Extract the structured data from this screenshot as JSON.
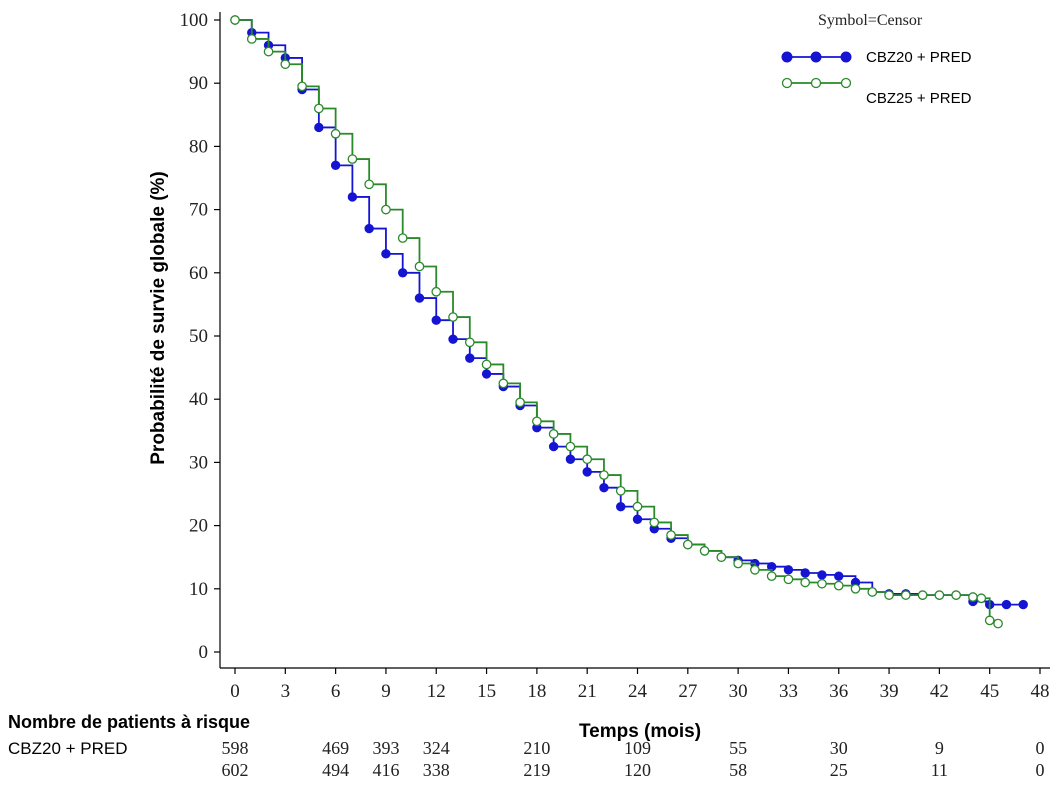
{
  "chart_data": {
    "type": "line",
    "xlabel": "Temps (mois)",
    "ylabel": "Probabilité de survie globale (%)",
    "xlim": [
      0,
      48
    ],
    "ylim": [
      0,
      100
    ],
    "x_ticks": [
      "0",
      "3",
      "6",
      "9",
      "12",
      "15",
      "18",
      "21",
      "24",
      "27",
      "30",
      "33",
      "36",
      "39",
      "42",
      "45",
      "48"
    ],
    "y_ticks": [
      "0",
      "10",
      "20",
      "30",
      "40",
      "50",
      "60",
      "70",
      "80",
      "90",
      "100"
    ],
    "legend": {
      "title": "Symbol=Censor",
      "placement": "top-right"
    },
    "series": [
      {
        "name": "CBZ20 + PRED",
        "color": "#1414d2",
        "marker": "filled-circle",
        "points": [
          [
            0,
            100
          ],
          [
            1,
            98
          ],
          [
            2,
            96
          ],
          [
            3,
            94
          ],
          [
            4,
            89
          ],
          [
            5,
            83
          ],
          [
            6,
            77
          ],
          [
            7,
            72
          ],
          [
            8,
            67
          ],
          [
            9,
            63
          ],
          [
            10,
            60
          ],
          [
            11,
            56
          ],
          [
            12,
            52.5
          ],
          [
            13,
            49.5
          ],
          [
            14,
            46.5
          ],
          [
            15,
            44
          ],
          [
            16,
            42
          ],
          [
            17,
            39
          ],
          [
            18,
            35.5
          ],
          [
            19,
            32.5
          ],
          [
            20,
            30.5
          ],
          [
            21,
            28.5
          ],
          [
            22,
            26
          ],
          [
            23,
            23
          ],
          [
            24,
            21
          ],
          [
            25,
            19.5
          ],
          [
            26,
            18
          ],
          [
            27,
            17
          ],
          [
            28,
            16
          ],
          [
            29,
            15
          ],
          [
            30,
            14.5
          ],
          [
            31,
            14
          ],
          [
            32,
            13.5
          ],
          [
            33,
            13
          ],
          [
            34,
            12.5
          ],
          [
            35,
            12.2
          ],
          [
            36,
            12
          ],
          [
            37,
            11
          ],
          [
            38,
            9.5
          ],
          [
            39,
            9.2
          ],
          [
            40,
            9.2
          ],
          [
            41,
            9
          ],
          [
            42,
            9
          ],
          [
            43,
            9
          ],
          [
            44,
            8
          ],
          [
            45,
            7.5
          ],
          [
            46,
            7.5
          ],
          [
            47,
            7.5
          ]
        ]
      },
      {
        "name": "CBZ25 + PRED",
        "color": "#2a8a2a",
        "marker": "open-circle",
        "points": [
          [
            0,
            100
          ],
          [
            1,
            97
          ],
          [
            2,
            95
          ],
          [
            3,
            93
          ],
          [
            4,
            89.5
          ],
          [
            5,
            86
          ],
          [
            6,
            82
          ],
          [
            7,
            78
          ],
          [
            8,
            74
          ],
          [
            9,
            70
          ],
          [
            10,
            65.5
          ],
          [
            11,
            61
          ],
          [
            12,
            57
          ],
          [
            13,
            53
          ],
          [
            14,
            49
          ],
          [
            15,
            45.5
          ],
          [
            16,
            42.5
          ],
          [
            17,
            39.5
          ],
          [
            18,
            36.5
          ],
          [
            19,
            34.5
          ],
          [
            20,
            32.5
          ],
          [
            21,
            30.5
          ],
          [
            22,
            28
          ],
          [
            23,
            25.5
          ],
          [
            24,
            23
          ],
          [
            25,
            20.5
          ],
          [
            26,
            18.5
          ],
          [
            27,
            17
          ],
          [
            28,
            16
          ],
          [
            29,
            15
          ],
          [
            30,
            14
          ],
          [
            31,
            13
          ],
          [
            32,
            12
          ],
          [
            33,
            11.5
          ],
          [
            34,
            11
          ],
          [
            35,
            10.8
          ],
          [
            36,
            10.5
          ],
          [
            37,
            10
          ],
          [
            38,
            9.5
          ],
          [
            39,
            9
          ],
          [
            40,
            9
          ],
          [
            41,
            9
          ],
          [
            42,
            9
          ],
          [
            43,
            9
          ],
          [
            44,
            8.7
          ],
          [
            44.5,
            8.5
          ],
          [
            45,
            5
          ],
          [
            45.5,
            4.5
          ]
        ]
      }
    ],
    "risk_table": {
      "title": "Nombre de patients à risque",
      "rows": [
        {
          "label": "CBZ20 + PRED",
          "values": [
            "598",
            "469",
            "393",
            "324",
            "210",
            "109",
            "55",
            "30",
            "9",
            "0"
          ]
        },
        {
          "label": "",
          "values": [
            "602",
            "494",
            "416",
            "338",
            "219",
            "120",
            "58",
            "25",
            "11",
            "0"
          ]
        }
      ],
      "x_at": [
        0,
        6,
        9,
        12,
        18,
        24,
        30,
        36,
        42,
        48
      ]
    }
  }
}
